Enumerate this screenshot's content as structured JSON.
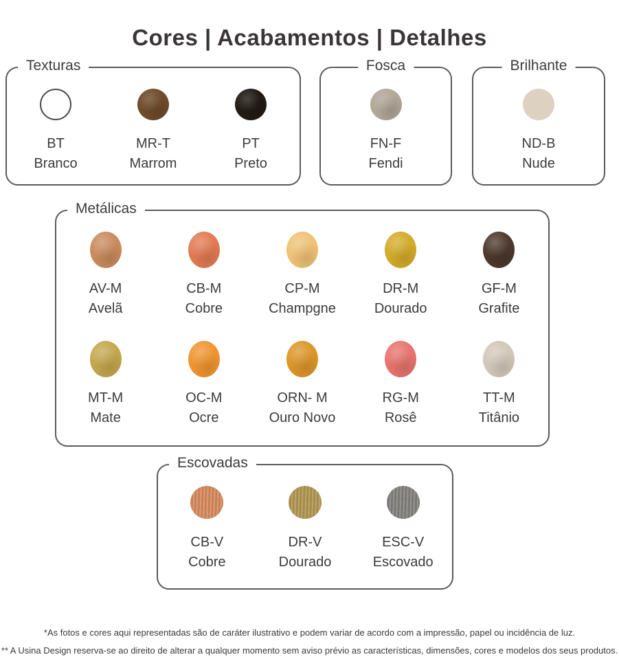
{
  "page": {
    "title": "Cores | Acabamentos | Detalhes",
    "footnotes": [
      "*As fotos e cores aqui representadas são de caráter ilustrativo e podem variar de acordo com a impressão, papel ou incidência de luz.",
      "** A Usina Design reserva-se ao direito de alterar a qualquer momento sem  aviso prévio  as características, dimensões, cores e modelos dos seus produtos."
    ]
  },
  "colors": {
    "box_border": "#58595b",
    "text": "#3b3b3b"
  },
  "groups": [
    {
      "label": "Texturas",
      "items": [
        {
          "code": "BT",
          "name": "Branco",
          "color": "#ffffff"
        },
        {
          "code": "MR-T",
          "name": "Marrom",
          "color": "#6f4c2a"
        },
        {
          "code": "PT",
          "name": "Preto",
          "color": "#221b15"
        }
      ]
    },
    {
      "label": "Fosca",
      "items": [
        {
          "code": "FN-F",
          "name": "Fendi",
          "color": "#b2a899"
        }
      ]
    },
    {
      "label": "Brilhante",
      "items": [
        {
          "code": "ND-B",
          "name": "Nude",
          "color": "#ddd1c1"
        }
      ]
    },
    {
      "label": "Metálicas",
      "items": [
        {
          "code": "AV-M",
          "name": "Avelã",
          "color": "#c98a5d"
        },
        {
          "code": "CB-M",
          "name": "Cobre",
          "color": "#e17a52"
        },
        {
          "code": "CP-M",
          "name": "Champgne",
          "color": "#eec276"
        },
        {
          "code": "DR-M",
          "name": "Dourado",
          "color": "#d2ab2a"
        },
        {
          "code": "GF-M",
          "name": "Grafite",
          "color": "#4c372b"
        },
        {
          "code": "MT-M",
          "name": "Mate",
          "color": "#c3a74e"
        },
        {
          "code": "OC-M",
          "name": "Ocre",
          "color": "#f09430"
        },
        {
          "code": "ORN- M",
          "name": "Ouro Novo",
          "color": "#dc9629"
        },
        {
          "code": "RG-M",
          "name": "Rosê",
          "color": "#e7736d"
        },
        {
          "code": "TT-M",
          "name": "Titânio",
          "color": "#d2c8b9"
        }
      ]
    },
    {
      "label": "Escovadas",
      "items": [
        {
          "code": "CB-V",
          "name": "Cobre",
          "color": "#d4895c"
        },
        {
          "code": "DR-V",
          "name": "Dourado",
          "color": "#af9551"
        },
        {
          "code": "ESC-V",
          "name": "Escovado",
          "color": "#82807c"
        }
      ]
    }
  ]
}
